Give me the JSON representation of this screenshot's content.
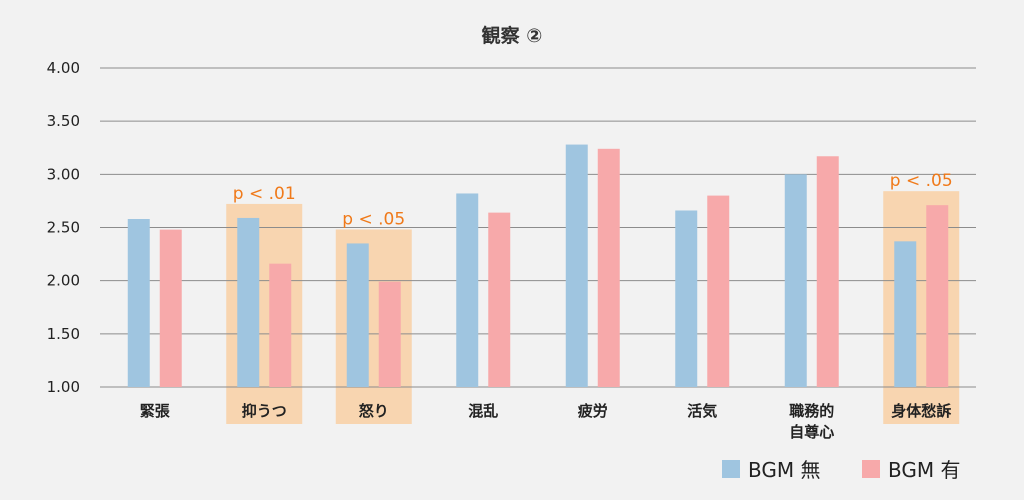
{
  "chart_data": {
    "type": "bar",
    "title": "観察 ②",
    "categories": [
      [
        "緊張"
      ],
      [
        "抑うつ"
      ],
      [
        "怒り"
      ],
      [
        "混乱"
      ],
      [
        "疲労"
      ],
      [
        "活気"
      ],
      [
        "職務的",
        "自尊心"
      ],
      [
        "身体愁訴"
      ]
    ],
    "series": [
      {
        "name": "BGM 無",
        "color": "#9fc5e0",
        "values": [
          2.58,
          2.59,
          2.35,
          2.82,
          3.28,
          2.66,
          3.0,
          2.37
        ]
      },
      {
        "name": "BGM 有",
        "color": "#f7a9aa",
        "values": [
          2.48,
          2.16,
          1.99,
          2.64,
          3.24,
          2.8,
          3.17,
          2.71
        ]
      }
    ],
    "ylim": [
      1.0,
      4.0
    ],
    "yticks": [
      "1.00",
      "1.50",
      "2.00",
      "2.50",
      "3.00",
      "3.50",
      "4.00"
    ],
    "grid": true,
    "legend": "bottom-right",
    "highlight_color": "#f8d5b0",
    "annotations": [
      {
        "category_index": 1,
        "text": "p < .01"
      },
      {
        "category_index": 2,
        "text": "p < .05"
      },
      {
        "category_index": 7,
        "text": "p < .05"
      }
    ]
  }
}
